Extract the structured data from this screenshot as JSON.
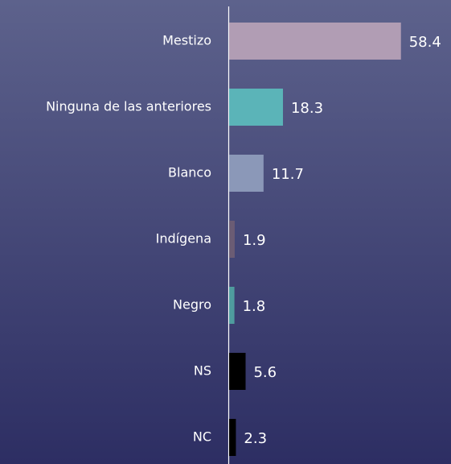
{
  "chart_data": {
    "type": "bar",
    "orientation": "horizontal",
    "categories": [
      "Mestizo",
      "Ninguna de las anteriores",
      "Blanco",
      "Indígena",
      "Negro",
      "NS",
      "NC"
    ],
    "values": [
      58.4,
      18.3,
      11.7,
      1.9,
      1.8,
      5.6,
      2.3
    ],
    "colors": [
      "#b19db4",
      "#5bb4b8",
      "#8b98b8",
      "#6b5c74",
      "#4f9c9e",
      "#000000",
      "#000000"
    ]
  }
}
